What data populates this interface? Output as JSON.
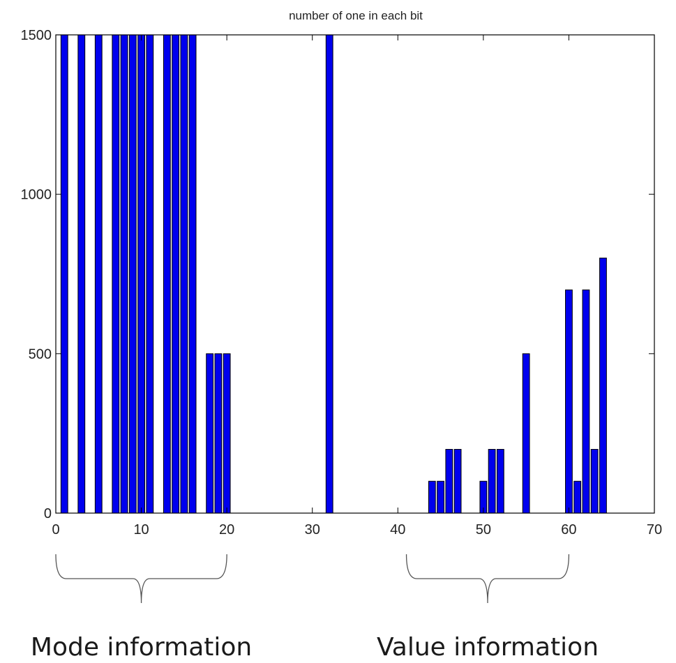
{
  "chart_data": {
    "type": "bar",
    "title": "number of one in each bit",
    "xlabel": "",
    "ylabel": "",
    "xlim": [
      0,
      70
    ],
    "ylim": [
      0,
      1500
    ],
    "xticks": [
      0,
      10,
      20,
      30,
      40,
      50,
      60,
      70
    ],
    "yticks": [
      0,
      500,
      1000,
      1500
    ],
    "grid": false,
    "bar_color": "#0000ee",
    "x": [
      1,
      3,
      5,
      7,
      8,
      9,
      10,
      11,
      13,
      14,
      15,
      16,
      18,
      19,
      20,
      32,
      44,
      45,
      46,
      47,
      50,
      51,
      52,
      55,
      60,
      61,
      62,
      63,
      64
    ],
    "values": [
      1500,
      1500,
      1500,
      1500,
      1500,
      1500,
      1500,
      1500,
      1500,
      1500,
      1500,
      1500,
      500,
      500,
      500,
      1500,
      100,
      100,
      200,
      200,
      100,
      200,
      200,
      500,
      700,
      100,
      700,
      200,
      800
    ]
  },
  "annotations": [
    {
      "label": "Mode information",
      "from": 0,
      "to": 20
    },
    {
      "label": "Value information",
      "from": 41,
      "to": 60
    }
  ]
}
